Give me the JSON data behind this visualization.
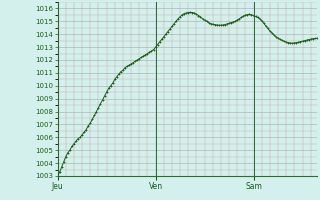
{
  "background_color": "#d4f0ec",
  "plot_bg_color": "#d4f0ec",
  "line_color": "#1a5c1a",
  "marker_color": "#1a5c1a",
  "ylim": [
    1003,
    1016.5
  ],
  "yticks": [
    1003,
    1004,
    1005,
    1006,
    1007,
    1008,
    1009,
    1010,
    1011,
    1012,
    1013,
    1014,
    1015,
    1016
  ],
  "xtick_labels": [
    "Jeu",
    "Ven",
    "Sam"
  ],
  "xtick_positions": [
    0,
    48,
    96
  ],
  "vline_positions": [
    0,
    48,
    96
  ],
  "pressure_values": [
    1003.0,
    1003.3,
    1003.7,
    1004.1,
    1004.5,
    1004.8,
    1005.0,
    1005.3,
    1005.5,
    1005.7,
    1005.9,
    1006.0,
    1006.2,
    1006.4,
    1006.6,
    1006.9,
    1007.1,
    1007.4,
    1007.7,
    1008.0,
    1008.3,
    1008.6,
    1008.9,
    1009.2,
    1009.5,
    1009.8,
    1010.0,
    1010.2,
    1010.5,
    1010.7,
    1010.9,
    1011.1,
    1011.2,
    1011.4,
    1011.5,
    1011.6,
    1011.7,
    1011.8,
    1011.9,
    1012.0,
    1012.1,
    1012.2,
    1012.3,
    1012.4,
    1012.5,
    1012.6,
    1012.7,
    1012.8,
    1013.0,
    1013.2,
    1013.4,
    1013.6,
    1013.8,
    1014.0,
    1014.2,
    1014.4,
    1014.6,
    1014.8,
    1015.0,
    1015.2,
    1015.35,
    1015.5,
    1015.6,
    1015.65,
    1015.68,
    1015.7,
    1015.68,
    1015.65,
    1015.55,
    1015.45,
    1015.35,
    1015.2,
    1015.1,
    1015.0,
    1014.9,
    1014.82,
    1014.78,
    1014.75,
    1014.72,
    1014.7,
    1014.7,
    1014.72,
    1014.75,
    1014.8,
    1014.85,
    1014.9,
    1014.95,
    1015.0,
    1015.1,
    1015.2,
    1015.3,
    1015.4,
    1015.48,
    1015.52,
    1015.55,
    1015.52,
    1015.45,
    1015.38,
    1015.3,
    1015.2,
    1015.05,
    1014.85,
    1014.65,
    1014.45,
    1014.25,
    1014.1,
    1013.95,
    1013.8,
    1013.7,
    1013.6,
    1013.52,
    1013.45,
    1013.4,
    1013.35,
    1013.32,
    1013.3,
    1013.32,
    1013.35,
    1013.38,
    1013.42,
    1013.46,
    1013.5,
    1013.54,
    1013.58,
    1013.62,
    1013.65,
    1013.67,
    1013.68
  ]
}
